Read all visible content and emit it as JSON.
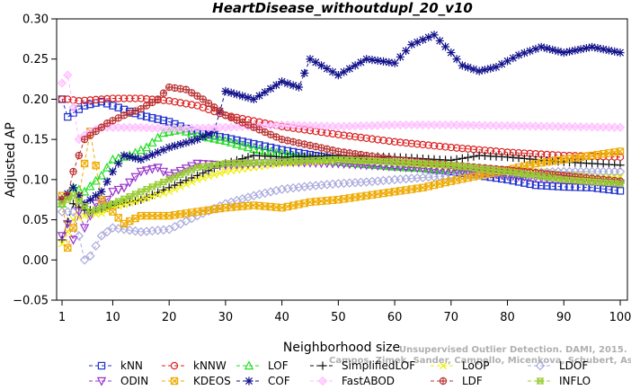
{
  "chart_data": {
    "type": "line",
    "title": "HeartDisease_withoutdupl_20_v10",
    "xlabel": "Neighborhood size",
    "ylabel": "Adjusted AP",
    "xlim": [
      1,
      100
    ],
    "ylim": [
      -0.05,
      0.3
    ],
    "xticks": [
      1,
      10,
      20,
      30,
      40,
      50,
      60,
      70,
      80,
      90,
      100
    ],
    "yticks": [
      -0.05,
      0.0,
      0.05,
      0.1,
      0.15,
      0.2,
      0.25,
      0.3
    ],
    "ytick_labels": [
      "−0.05",
      "0.00",
      "0.05",
      "0.10",
      "0.15",
      "0.20",
      "0.25",
      "0.30"
    ],
    "grid": false,
    "legend_position": "bottom",
    "watermark_lines": [
      "Unsupervised Outlier Detection. DAMI, 2015.",
      "Campos, Zimek, Sander, Campello, Micenkova, Schubert, Assent, Houle"
    ],
    "series": [
      {
        "name": "kNN",
        "color": "#2233cc",
        "marker": "square",
        "points": [
          [
            1,
            0.2
          ],
          [
            2,
            0.178
          ],
          [
            3,
            0.183
          ],
          [
            5,
            0.192
          ],
          [
            8,
            0.197
          ],
          [
            10,
            0.192
          ],
          [
            15,
            0.18
          ],
          [
            20,
            0.172
          ],
          [
            25,
            0.158
          ],
          [
            30,
            0.152
          ],
          [
            40,
            0.137
          ],
          [
            50,
            0.125
          ],
          [
            60,
            0.118
          ],
          [
            70,
            0.11
          ],
          [
            80,
            0.1
          ],
          [
            85,
            0.093
          ],
          [
            90,
            0.091
          ],
          [
            95,
            0.09
          ],
          [
            100,
            0.086
          ]
        ]
      },
      {
        "name": "kNNW",
        "color": "#dd2222",
        "marker": "circle",
        "points": [
          [
            1,
            0.2
          ],
          [
            2,
            0.2
          ],
          [
            4,
            0.198
          ],
          [
            8,
            0.2
          ],
          [
            10,
            0.201
          ],
          [
            15,
            0.201
          ],
          [
            20,
            0.198
          ],
          [
            25,
            0.192
          ],
          [
            30,
            0.18
          ],
          [
            40,
            0.166
          ],
          [
            50,
            0.156
          ],
          [
            60,
            0.147
          ],
          [
            70,
            0.14
          ],
          [
            80,
            0.134
          ],
          [
            90,
            0.13
          ],
          [
            100,
            0.128
          ]
        ]
      },
      {
        "name": "LOF",
        "color": "#22dd22",
        "marker": "triangle-up",
        "points": [
          [
            1,
            0.07
          ],
          [
            3,
            0.09
          ],
          [
            5,
            0.085
          ],
          [
            8,
            0.105
          ],
          [
            10,
            0.125
          ],
          [
            13,
            0.13
          ],
          [
            16,
            0.14
          ],
          [
            19,
            0.158
          ],
          [
            22,
            0.162
          ],
          [
            25,
            0.155
          ],
          [
            30,
            0.148
          ],
          [
            35,
            0.138
          ],
          [
            40,
            0.132
          ],
          [
            45,
            0.126
          ],
          [
            50,
            0.122
          ],
          [
            60,
            0.116
          ],
          [
            70,
            0.112
          ],
          [
            80,
            0.108
          ],
          [
            90,
            0.104
          ],
          [
            100,
            0.1
          ]
        ]
      },
      {
        "name": "SimplifiedLOF",
        "color": "#111111",
        "marker": "plus",
        "points": [
          [
            1,
            0.025
          ],
          [
            3,
            0.07
          ],
          [
            5,
            0.062
          ],
          [
            8,
            0.062
          ],
          [
            10,
            0.068
          ],
          [
            15,
            0.075
          ],
          [
            20,
            0.09
          ],
          [
            25,
            0.105
          ],
          [
            30,
            0.12
          ],
          [
            35,
            0.13
          ],
          [
            40,
            0.128
          ],
          [
            50,
            0.13
          ],
          [
            60,
            0.128
          ],
          [
            70,
            0.124
          ],
          [
            75,
            0.13
          ],
          [
            80,
            0.128
          ],
          [
            90,
            0.122
          ],
          [
            100,
            0.118
          ]
        ]
      },
      {
        "name": "LoOP",
        "color": "#eeee00",
        "marker": "x",
        "points": [
          [
            1,
            0.02
          ],
          [
            3,
            0.05
          ],
          [
            5,
            0.055
          ],
          [
            8,
            0.058
          ],
          [
            10,
            0.065
          ],
          [
            15,
            0.075
          ],
          [
            20,
            0.085
          ],
          [
            25,
            0.1
          ],
          [
            30,
            0.11
          ],
          [
            40,
            0.12
          ],
          [
            50,
            0.123
          ],
          [
            60,
            0.12
          ],
          [
            70,
            0.115
          ],
          [
            80,
            0.112
          ],
          [
            90,
            0.108
          ],
          [
            100,
            0.103
          ]
        ]
      },
      {
        "name": "LDOF",
        "color": "#aaaadd",
        "marker": "diamond",
        "points": [
          [
            3,
            0.06
          ],
          [
            5,
            0.0
          ],
          [
            6,
            0.005
          ],
          [
            8,
            0.03
          ],
          [
            10,
            0.04
          ],
          [
            15,
            0.035
          ],
          [
            20,
            0.038
          ],
          [
            25,
            0.055
          ],
          [
            30,
            0.07
          ],
          [
            35,
            0.08
          ],
          [
            40,
            0.088
          ],
          [
            45,
            0.092
          ],
          [
            50,
            0.095
          ],
          [
            55,
            0.097
          ],
          [
            60,
            0.1
          ],
          [
            70,
            0.105
          ],
          [
            80,
            0.108
          ],
          [
            90,
            0.11
          ],
          [
            100,
            0.11
          ]
        ]
      },
      {
        "name": "ODIN",
        "color": "#9933cc",
        "marker": "triangle-down",
        "points": [
          [
            1,
            0.03
          ],
          [
            2,
            0.045
          ],
          [
            3,
            0.025
          ],
          [
            4,
            0.06
          ],
          [
            5,
            0.04
          ],
          [
            7,
            0.07
          ],
          [
            9,
            0.075
          ],
          [
            10,
            0.085
          ],
          [
            12,
            0.09
          ],
          [
            15,
            0.11
          ],
          [
            18,
            0.115
          ],
          [
            20,
            0.105
          ],
          [
            25,
            0.12
          ],
          [
            30,
            0.118
          ],
          [
            40,
            0.122
          ],
          [
            50,
            0.12
          ],
          [
            60,
            0.116
          ],
          [
            70,
            0.112
          ],
          [
            80,
            0.105
          ],
          [
            90,
            0.1
          ],
          [
            100,
            0.095
          ]
        ]
      },
      {
        "name": "KDEOS",
        "color": "#eeaa00",
        "marker": "square-x",
        "points": [
          [
            1,
            0.08
          ],
          [
            2,
            0.015
          ],
          [
            3,
            0.04
          ],
          [
            4,
            0.08
          ],
          [
            5,
            0.12
          ],
          [
            6,
            0.16
          ],
          [
            8,
            0.075
          ],
          [
            12,
            0.045
          ],
          [
            15,
            0.055
          ],
          [
            20,
            0.055
          ],
          [
            25,
            0.06
          ],
          [
            30,
            0.065
          ],
          [
            35,
            0.068
          ],
          [
            40,
            0.065
          ],
          [
            45,
            0.072
          ],
          [
            50,
            0.075
          ],
          [
            55,
            0.08
          ],
          [
            60,
            0.085
          ],
          [
            65,
            0.09
          ],
          [
            70,
            0.098
          ],
          [
            75,
            0.105
          ],
          [
            80,
            0.112
          ],
          [
            85,
            0.12
          ],
          [
            90,
            0.125
          ],
          [
            95,
            0.13
          ],
          [
            100,
            0.135
          ]
        ]
      },
      {
        "name": "COF",
        "color": "#11118b",
        "marker": "asterisk",
        "points": [
          [
            1,
            0.075
          ],
          [
            3,
            0.09
          ],
          [
            5,
            0.07
          ],
          [
            8,
            0.085
          ],
          [
            10,
            0.11
          ],
          [
            12,
            0.13
          ],
          [
            15,
            0.125
          ],
          [
            20,
            0.14
          ],
          [
            25,
            0.15
          ],
          [
            28,
            0.16
          ],
          [
            30,
            0.21
          ],
          [
            35,
            0.2
          ],
          [
            40,
            0.222
          ],
          [
            43,
            0.215
          ],
          [
            45,
            0.25
          ],
          [
            50,
            0.23
          ],
          [
            55,
            0.25
          ],
          [
            60,
            0.245
          ],
          [
            63,
            0.268
          ],
          [
            67,
            0.28
          ],
          [
            70,
            0.258
          ],
          [
            72,
            0.242
          ],
          [
            75,
            0.235
          ],
          [
            78,
            0.24
          ],
          [
            82,
            0.255
          ],
          [
            86,
            0.265
          ],
          [
            90,
            0.258
          ],
          [
            95,
            0.265
          ],
          [
            100,
            0.258
          ]
        ]
      },
      {
        "name": "FastABOD",
        "color": "#ffbbff",
        "marker": "diamond-filled",
        "points": [
          [
            1,
            0.22
          ],
          [
            2,
            0.23
          ],
          [
            4,
            0.15
          ],
          [
            6,
            0.16
          ],
          [
            8,
            0.165
          ],
          [
            10,
            0.165
          ],
          [
            15,
            0.165
          ],
          [
            20,
            0.163
          ],
          [
            30,
            0.165
          ],
          [
            40,
            0.168
          ],
          [
            50,
            0.166
          ],
          [
            60,
            0.168
          ],
          [
            70,
            0.168
          ],
          [
            80,
            0.167
          ],
          [
            90,
            0.166
          ],
          [
            100,
            0.165
          ]
        ]
      },
      {
        "name": "LDF",
        "color": "#bb3333",
        "marker": "circle-plus",
        "points": [
          [
            1,
            0.075
          ],
          [
            2,
            0.08
          ],
          [
            3,
            0.11
          ],
          [
            5,
            0.15
          ],
          [
            7,
            0.16
          ],
          [
            9,
            0.17
          ],
          [
            12,
            0.18
          ],
          [
            15,
            0.188
          ],
          [
            18,
            0.2
          ],
          [
            20,
            0.215
          ],
          [
            23,
            0.212
          ],
          [
            26,
            0.2
          ],
          [
            30,
            0.18
          ],
          [
            35,
            0.165
          ],
          [
            40,
            0.15
          ],
          [
            50,
            0.135
          ],
          [
            60,
            0.125
          ],
          [
            70,
            0.118
          ],
          [
            80,
            0.112
          ],
          [
            90,
            0.105
          ],
          [
            100,
            0.098
          ]
        ]
      },
      {
        "name": "INFLO",
        "color": "#99cc33",
        "marker": "star",
        "points": [
          [
            1,
            0.07
          ],
          [
            3,
            0.08
          ],
          [
            6,
            0.06
          ],
          [
            10,
            0.07
          ],
          [
            15,
            0.085
          ],
          [
            20,
            0.1
          ],
          [
            25,
            0.115
          ],
          [
            30,
            0.12
          ],
          [
            40,
            0.122
          ],
          [
            50,
            0.125
          ],
          [
            60,
            0.122
          ],
          [
            70,
            0.118
          ],
          [
            80,
            0.11
          ],
          [
            90,
            0.1
          ],
          [
            100,
            0.095
          ]
        ]
      }
    ]
  }
}
